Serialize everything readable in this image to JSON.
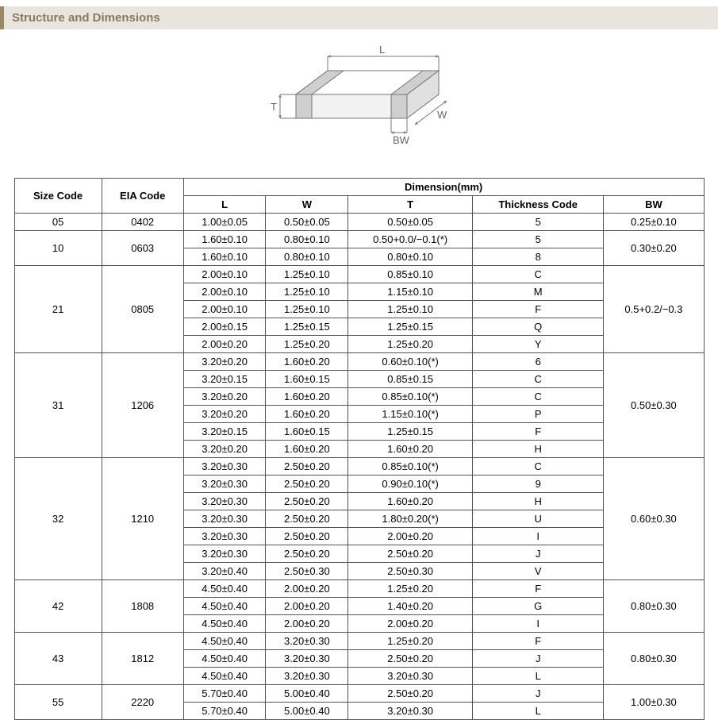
{
  "section_title": "Structure and Dimensions",
  "diagram": {
    "labels": {
      "L": "L",
      "W": "W",
      "T": "T",
      "BW": "BW"
    },
    "stroke": "#757575",
    "fill_top": "#ffffff",
    "fill_side": "#f2f2f2",
    "fill_end": "#e0e0e0",
    "fill_band": "#cfcfcf"
  },
  "table": {
    "header_group": "Dimension(mm)",
    "headers": {
      "size": "Size Code",
      "eia": "EIA Code",
      "L": "L",
      "W": "W",
      "T": "T",
      "thick": "Thickness  Code",
      "BW": "BW"
    },
    "groups": [
      {
        "size": "05",
        "eia": "0402",
        "bw": "0.25±0.10",
        "rows": [
          {
            "L": "1.00±0.05",
            "W": "0.50±0.05",
            "T": "0.50±0.05",
            "tc": "5"
          }
        ]
      },
      {
        "size": "10",
        "eia": "0603",
        "bw": "0.30±0.20",
        "rows": [
          {
            "L": "1.60±0.10",
            "W": "0.80±0.10",
            "T": "0.50+0.0/−0.1(*)",
            "tc": "5"
          },
          {
            "L": "1.60±0.10",
            "W": "0.80±0.10",
            "T": "0.80±0.10",
            "tc": "8"
          }
        ]
      },
      {
        "size": "21",
        "eia": "0805",
        "bw": "0.5+0.2/−0.3",
        "rows": [
          {
            "L": "2.00±0.10",
            "W": "1.25±0.10",
            "T": "0.85±0.10",
            "tc": "C"
          },
          {
            "L": "2.00±0.10",
            "W": "1.25±0.10",
            "T": "1.15±0.10",
            "tc": "M"
          },
          {
            "L": "2.00±0.10",
            "W": "1.25±0.10",
            "T": "1.25±0.10",
            "tc": "F"
          },
          {
            "L": "2.00±0.15",
            "W": "1.25±0.15",
            "T": "1.25±0.15",
            "tc": "Q"
          },
          {
            "L": "2.00±0.20",
            "W": "1.25±0.20",
            "T": "1.25±0.20",
            "tc": "Y"
          }
        ]
      },
      {
        "size": "31",
        "eia": "1206",
        "bw": "0.50±0.30",
        "rows": [
          {
            "L": "3.20±0.20",
            "W": "1.60±0.20",
            "T": "0.60±0.10(*)",
            "tc": "6"
          },
          {
            "L": "3.20±0.15",
            "W": "1.60±0.15",
            "T": "0.85±0.15",
            "tc": "C"
          },
          {
            "L": "3.20±0.20",
            "W": "1.60±0.20",
            "T": "0.85±0.10(*)",
            "tc": "C"
          },
          {
            "L": "3.20±0.20",
            "W": "1.60±0.20",
            "T": "1.15±0.10(*)",
            "tc": "P"
          },
          {
            "L": "3.20±0.15",
            "W": "1.60±0.15",
            "T": "1.25±0.15",
            "tc": "F"
          },
          {
            "L": "3.20±0.20",
            "W": "1.60±0.20",
            "T": "1.60±0.20",
            "tc": "H"
          }
        ]
      },
      {
        "size": "32",
        "eia": "1210",
        "bw": "0.60±0.30",
        "rows": [
          {
            "L": "3.20±0.30",
            "W": "2.50±0.20",
            "T": "0.85±0.10(*)",
            "tc": "C"
          },
          {
            "L": "3.20±0.30",
            "W": "2.50±0.20",
            "T": "0.90±0.10(*)",
            "tc": "9"
          },
          {
            "L": "3.20±0.30",
            "W": "2.50±0.20",
            "T": "1.60±0.20",
            "tc": "H"
          },
          {
            "L": "3.20±0.30",
            "W": "2.50±0.20",
            "T": "1.80±0.20(*)",
            "tc": "U"
          },
          {
            "L": "3.20±0.30",
            "W": "2.50±0.20",
            "T": "2.00±0.20",
            "tc": "I"
          },
          {
            "L": "3.20±0.30",
            "W": "2.50±0.20",
            "T": "2.50±0.20",
            "tc": "J"
          },
          {
            "L": "3.20±0.40",
            "W": "2.50±0.30",
            "T": "2.50±0.30",
            "tc": "V"
          }
        ]
      },
      {
        "size": "42",
        "eia": "1808",
        "bw": "0.80±0.30",
        "rows": [
          {
            "L": "4.50±0.40",
            "W": "2.00±0.20",
            "T": "1.25±0.20",
            "tc": "F"
          },
          {
            "L": "4.50±0.40",
            "W": "2.00±0.20",
            "T": "1.40±0.20",
            "tc": "G"
          },
          {
            "L": "4.50±0.40",
            "W": "2.00±0.20",
            "T": "2.00±0.20",
            "tc": "I"
          }
        ]
      },
      {
        "size": "43",
        "eia": "1812",
        "bw": "0.80±0.30",
        "rows": [
          {
            "L": "4.50±0.40",
            "W": "3.20±0.30",
            "T": "1.25±0.20",
            "tc": "F"
          },
          {
            "L": "4.50±0.40",
            "W": "3.20±0.30",
            "T": "2.50±0.20",
            "tc": "J"
          },
          {
            "L": "4.50±0.40",
            "W": "3.20±0.30",
            "T": "3.20±0.30",
            "tc": "L"
          }
        ]
      },
      {
        "size": "55",
        "eia": "2220",
        "bw": "1.00±0.30",
        "rows": [
          {
            "L": "5.70±0.40",
            "W": "5.00±0.40",
            "T": "2.50±0.20",
            "tc": "J"
          },
          {
            "L": "5.70±0.40",
            "W": "5.00±0.40",
            "T": "3.20±0.30",
            "tc": "L"
          }
        ]
      }
    ]
  }
}
